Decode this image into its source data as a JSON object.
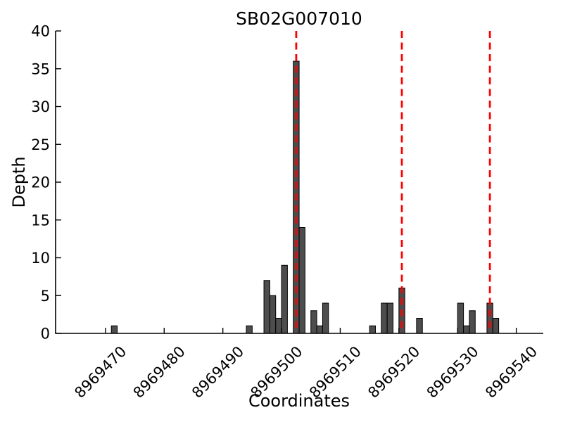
{
  "chart_data": {
    "type": "bar",
    "title": "SB02G007010",
    "xlabel": "Coordinates",
    "ylabel": "Depth",
    "xlim": [
      8969461.5,
      8969544.6
    ],
    "ylim": [
      0,
      40
    ],
    "xticks": [
      8969470,
      8969480,
      8969490,
      8969500,
      8969510,
      8969520,
      8969530,
      8969540
    ],
    "yticks": [
      0,
      5,
      10,
      15,
      20,
      25,
      30,
      35,
      40
    ],
    "grid": false,
    "legend": "none",
    "bar_width": 1,
    "bar_align": "left-edge",
    "bars": [
      {
        "pos": 8969471,
        "depth": 1
      },
      {
        "pos": 8969494,
        "depth": 1
      },
      {
        "pos": 8969497,
        "depth": 7
      },
      {
        "pos": 8969498,
        "depth": 5
      },
      {
        "pos": 8969499,
        "depth": 2
      },
      {
        "pos": 8969500,
        "depth": 9
      },
      {
        "pos": 8969502,
        "depth": 36
      },
      {
        "pos": 8969503,
        "depth": 14
      },
      {
        "pos": 8969505,
        "depth": 3
      },
      {
        "pos": 8969506,
        "depth": 1
      },
      {
        "pos": 8969507,
        "depth": 4
      },
      {
        "pos": 8969515,
        "depth": 1
      },
      {
        "pos": 8969517,
        "depth": 4
      },
      {
        "pos": 8969518,
        "depth": 4
      },
      {
        "pos": 8969520,
        "depth": 6
      },
      {
        "pos": 8969523,
        "depth": 2
      },
      {
        "pos": 8969530,
        "depth": 4
      },
      {
        "pos": 8969531,
        "depth": 1
      },
      {
        "pos": 8969532,
        "depth": 3
      },
      {
        "pos": 8969535,
        "depth": 4
      },
      {
        "pos": 8969536,
        "depth": 2
      }
    ],
    "vlines": {
      "positions": [
        8969502.5,
        8969520.5,
        8969535.5
      ],
      "style": "dashed",
      "color": "#ff0000",
      "span": [
        0,
        40
      ]
    },
    "colors": {
      "bar_fill": "#4d4d4d",
      "bar_edge": "#000000",
      "axis": "#000000",
      "background": "#ffffff"
    }
  }
}
